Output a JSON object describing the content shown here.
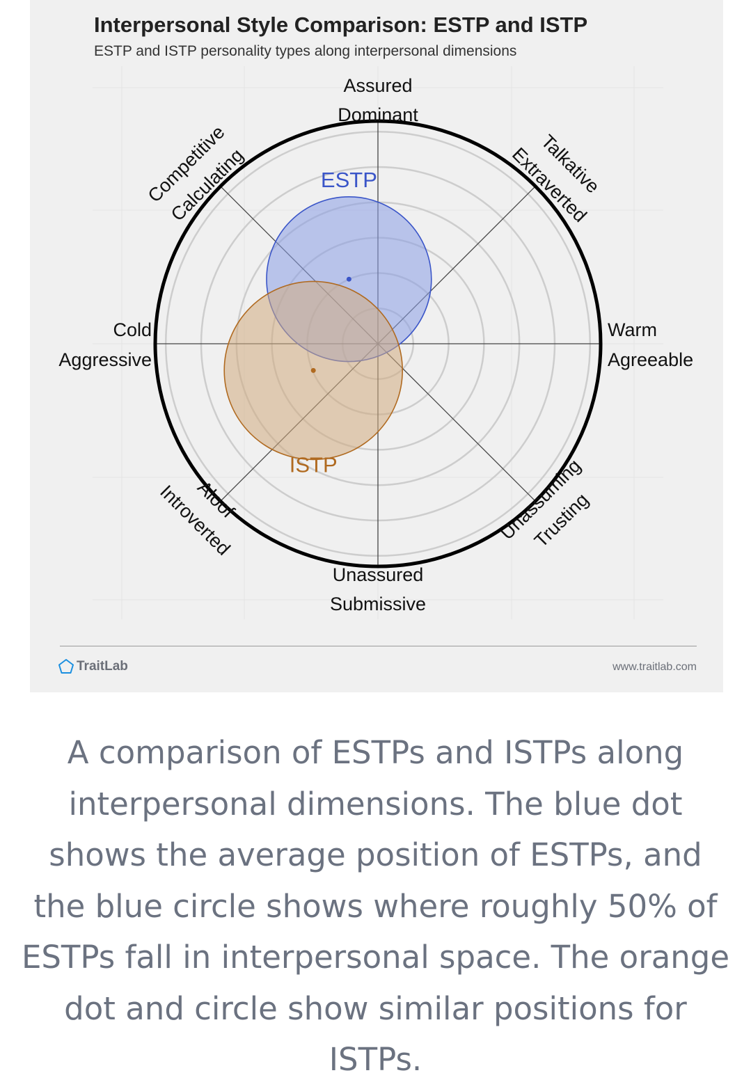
{
  "chart_data": {
    "type": "scatter",
    "title": "Interpersonal Style Comparison: ESTP and ISTP",
    "subtitle": "ESTP and ISTP personality types along interpersonal dimensions",
    "axes": {
      "top": [
        "Assured",
        "Dominant"
      ],
      "bottom": [
        "Unassured",
        "Submissive"
      ],
      "left": [
        "Cold",
        "Aggressive"
      ],
      "right": [
        "Warm",
        "Agreeable"
      ],
      "top_left": [
        "Competitive",
        "Calculating"
      ],
      "top_right": [
        "Talkative",
        "Extraverted"
      ],
      "bottom_left": [
        "Aloof",
        "Introverted"
      ],
      "bottom_right": [
        "Unassuming",
        "Trusting"
      ]
    },
    "xlim": [
      -1,
      1
    ],
    "ylim": [
      -1,
      1
    ],
    "ring_count": 6,
    "series": [
      {
        "name": "ESTP",
        "x": -0.13,
        "y": 0.29,
        "radius": 0.37,
        "color": "#3a55c8",
        "fill": "#8a9ee6"
      },
      {
        "name": "ISTP",
        "x": -0.29,
        "y": -0.12,
        "radius": 0.4,
        "color": "#b06a20",
        "fill": "#d2ac80"
      }
    ]
  },
  "footer": {
    "brand": "TraitLab",
    "url": "www.traitlab.com"
  },
  "caption": "A comparison of ESTPs and ISTPs along interpersonal dimensions. The blue dot shows the average position of ESTPs, and the blue circle shows where roughly 50% of ESTPs fall in interpersonal space. The orange dot and circle show similar positions for ISTPs.",
  "icons": {
    "brand_logo": "pentagon-icon"
  }
}
